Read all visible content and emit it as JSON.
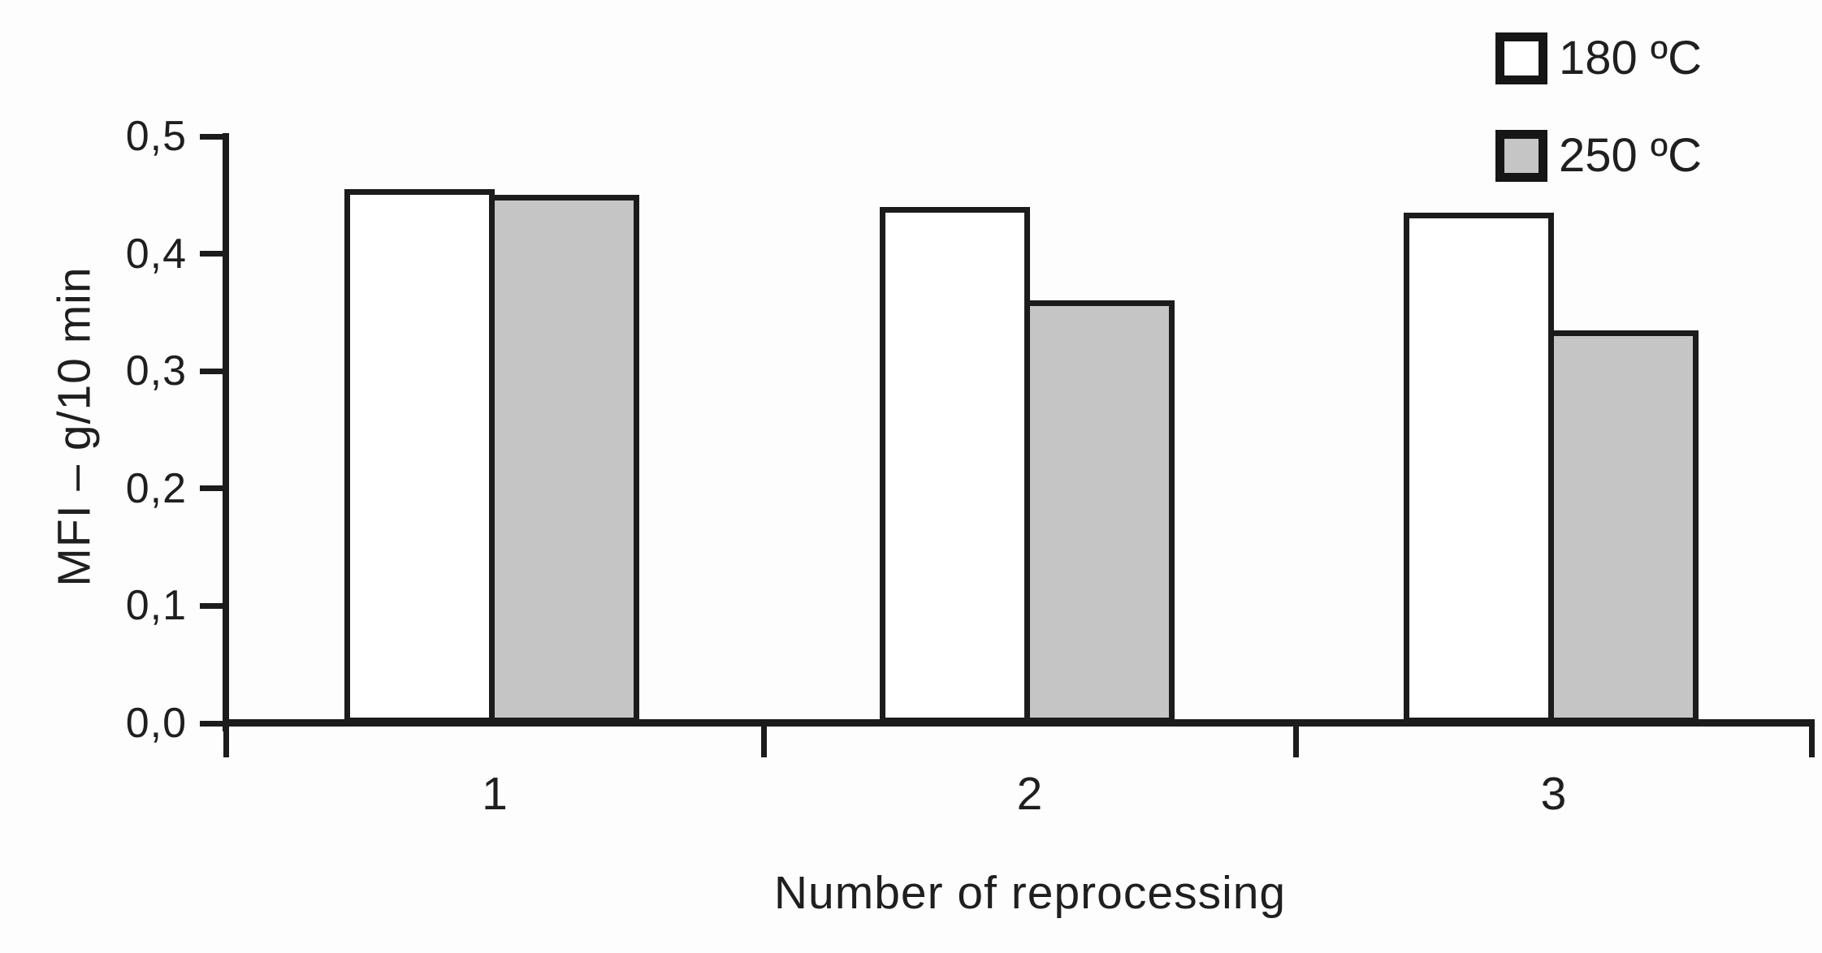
{
  "chart_data": {
    "type": "bar",
    "title": "",
    "categories": [
      "1",
      "2",
      "3"
    ],
    "series": [
      {
        "name": "180 ºC",
        "color": "#ffffff",
        "values": [
          0.455,
          0.44,
          0.435
        ]
      },
      {
        "name": "250 ºC",
        "color": "#c5c5c5",
        "values": [
          0.45,
          0.36,
          0.335
        ]
      }
    ],
    "xlabel": "Number of reprocessing",
    "ylabel": "MFI – g/10 min",
    "ylim": [
      0,
      0.5
    ],
    "ytick_step": 0.1,
    "ytick_labels": [
      "0,0",
      "0,1",
      "0,2",
      "0,3",
      "0,4",
      "0,5"
    ],
    "decimal_separator": ",",
    "grid": false,
    "legend_position": "top-right",
    "colors": {
      "ink": "#1c1c1c",
      "background": "#fdfdfd",
      "bar_180": "#ffffff",
      "bar_250": "#c5c5c5"
    }
  }
}
